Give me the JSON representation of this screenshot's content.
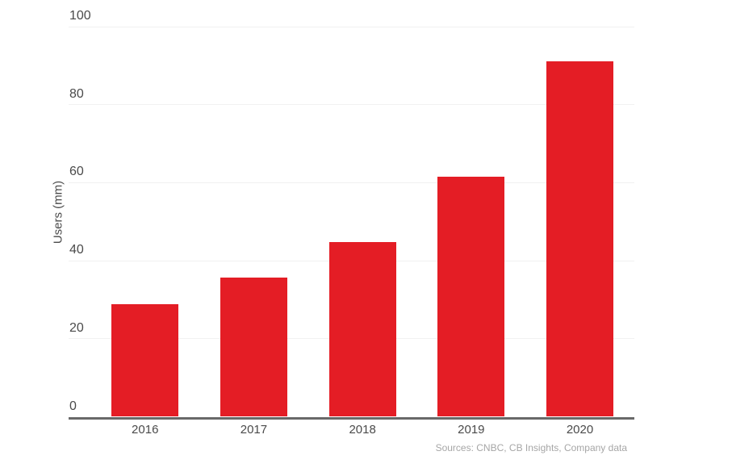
{
  "chart_data": {
    "type": "bar",
    "title": "",
    "categories": [
      "2016",
      "2017",
      "2018",
      "2019",
      "2020"
    ],
    "values": [
      28.8,
      35.7,
      44.8,
      61.6,
      91.2
    ],
    "xlabel": "",
    "ylabel": "Users (mm)",
    "ylim": [
      0,
      100
    ],
    "yticks": [
      0,
      20,
      40,
      60,
      80,
      100
    ],
    "grid": true,
    "legend_position": "none",
    "source_note": "Sources: CNBC, CB Insights, Company data"
  },
  "colors": {
    "background": "#ffffff",
    "bar": "#e41d25",
    "axis_line": "#696969",
    "gridline": "#f1f1f1",
    "tick_label": "#4a4a4a",
    "axis_title": "#4a4a4a",
    "source_text": "#a6a6a6"
  }
}
